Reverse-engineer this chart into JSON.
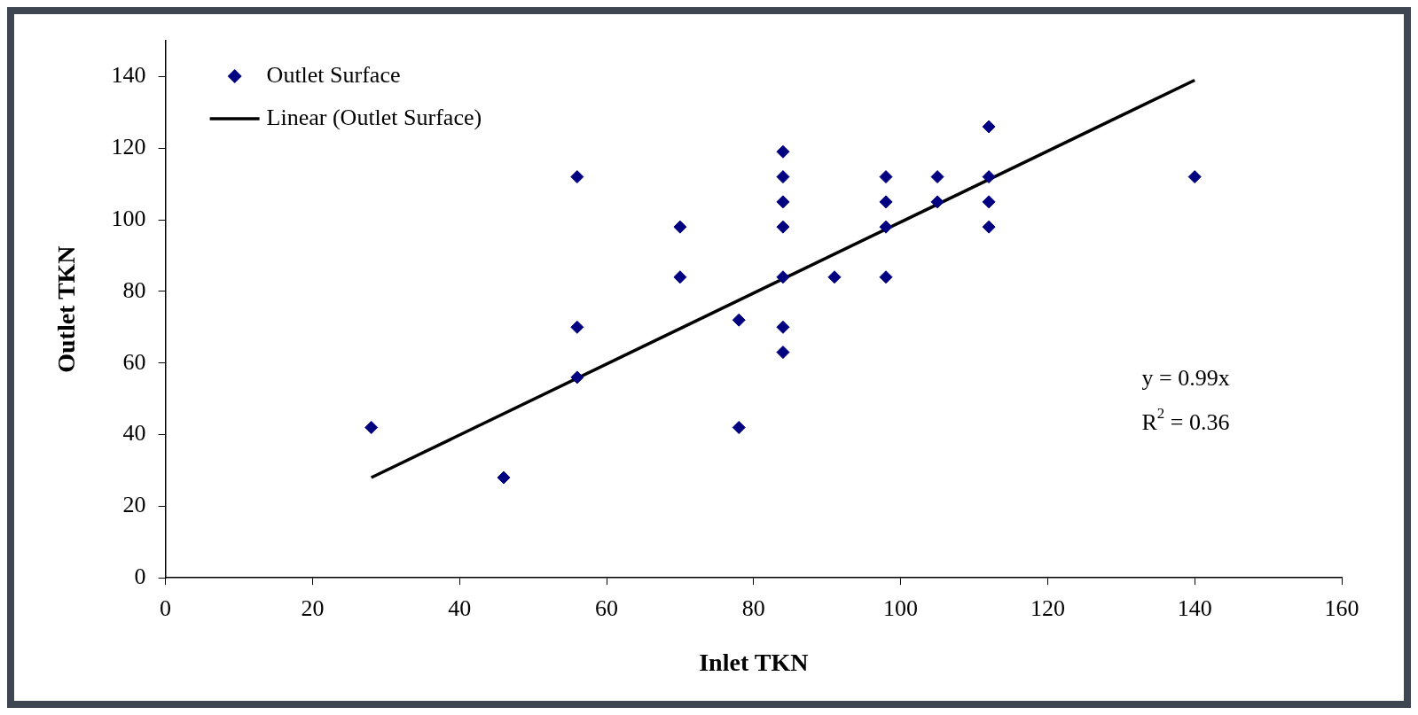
{
  "chart_data": {
    "type": "scatter",
    "xlabel": "Inlet TKN",
    "ylabel": "Outlet TKN",
    "xlim": [
      0,
      160
    ],
    "xticks": [
      0,
      20,
      40,
      60,
      80,
      100,
      120,
      140,
      160
    ],
    "ylim": [
      0,
      150
    ],
    "yticks": [
      0,
      20,
      40,
      60,
      80,
      100,
      120,
      140
    ],
    "grid": false,
    "legend": "top left",
    "annotations": [
      "y = 0.99x",
      "R$^{2}$ = 0.36"
    ],
    "series": [
      {
        "name": "Outlet Surface",
        "type": "scatter",
        "color": "#000080",
        "marker": "diamond",
        "x": [
          28,
          46,
          56,
          56,
          56,
          70,
          70,
          78,
          78,
          84,
          84,
          84,
          84,
          84,
          84,
          84,
          91,
          98,
          98,
          98,
          98,
          105,
          105,
          112,
          112,
          112,
          112,
          140
        ],
        "values": [
          42,
          28,
          112,
          70,
          56,
          98,
          84,
          72,
          42,
          119,
          112,
          105,
          98,
          84,
          70,
          63,
          84,
          112,
          105,
          98,
          84,
          112,
          105,
          126,
          112,
          105,
          98,
          112
        ]
      },
      {
        "name": "Linear (Outlet Surface)",
        "type": "line",
        "color": "#000000",
        "marker": "none",
        "line_style": "solid",
        "x": [
          28,
          140
        ],
        "values": [
          28,
          139
        ]
      }
    ]
  }
}
